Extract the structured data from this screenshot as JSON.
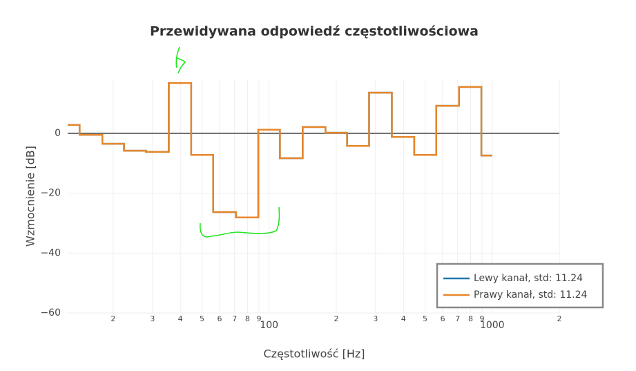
{
  "chart_data": {
    "type": "line",
    "line_shape": "hvh",
    "title": "Przewidywana odpowiedź częstotliwościowa",
    "xlabel": "Częstotliwość [Hz]",
    "ylabel": "Wzmocnienie [dB]",
    "x": [
      12.5,
      16,
      20,
      25,
      31.5,
      40,
      50,
      63,
      80,
      100,
      125,
      160,
      200,
      250,
      315,
      400,
      500,
      630,
      800,
      1000
    ],
    "series": [
      {
        "name": "Lewy kanał, std: 11.24",
        "color": "#1f77b4",
        "values": [
          2.8,
          -0.5,
          -3.5,
          -5.8,
          -6.2,
          16.8,
          -7.2,
          -26.3,
          -28.1,
          1.2,
          -8.3,
          2.1,
          0.2,
          -4.2,
          13.6,
          -1.2,
          -7.2,
          9.2,
          15.5,
          -7.4
        ]
      },
      {
        "name": "Prawy kanał, std: 11.24",
        "color": "#e8872a",
        "values": [
          2.8,
          -0.5,
          -3.5,
          -5.8,
          -6.2,
          16.8,
          -7.2,
          -26.3,
          -28.1,
          1.2,
          -8.3,
          2.1,
          0.2,
          -4.2,
          13.6,
          -1.2,
          -7.2,
          9.2,
          15.5,
          -7.4
        ]
      }
    ],
    "xscale": "log",
    "xlim": [
      12.5,
      2000
    ],
    "xticks": [
      {
        "value": 20,
        "label": "2"
      },
      {
        "value": 30,
        "label": "3"
      },
      {
        "value": 40,
        "label": "4"
      },
      {
        "value": 50,
        "label": "5"
      },
      {
        "value": 60,
        "label": "6"
      },
      {
        "value": 70,
        "label": "7"
      },
      {
        "value": 80,
        "label": "8"
      },
      {
        "value": 90,
        "label": "9"
      },
      100,
      {
        "value": 200,
        "label": "2"
      },
      {
        "value": 300,
        "label": "3"
      },
      {
        "value": 400,
        "label": "4"
      },
      {
        "value": 500,
        "label": "5"
      },
      {
        "value": 600,
        "label": "6"
      },
      {
        "value": 700,
        "label": "7"
      },
      {
        "value": 800,
        "label": "8"
      },
      {
        "value": 900,
        "label": "9"
      },
      1000,
      {
        "value": 2000,
        "label": "2"
      }
    ],
    "ylim": [
      -60,
      18
    ],
    "yticks": [
      {
        "value": -60,
        "label": "−60"
      },
      {
        "value": -40,
        "label": "−40"
      },
      {
        "value": -20,
        "label": "−20"
      },
      0
    ],
    "grid": true,
    "legend": "bottom-right"
  }
}
